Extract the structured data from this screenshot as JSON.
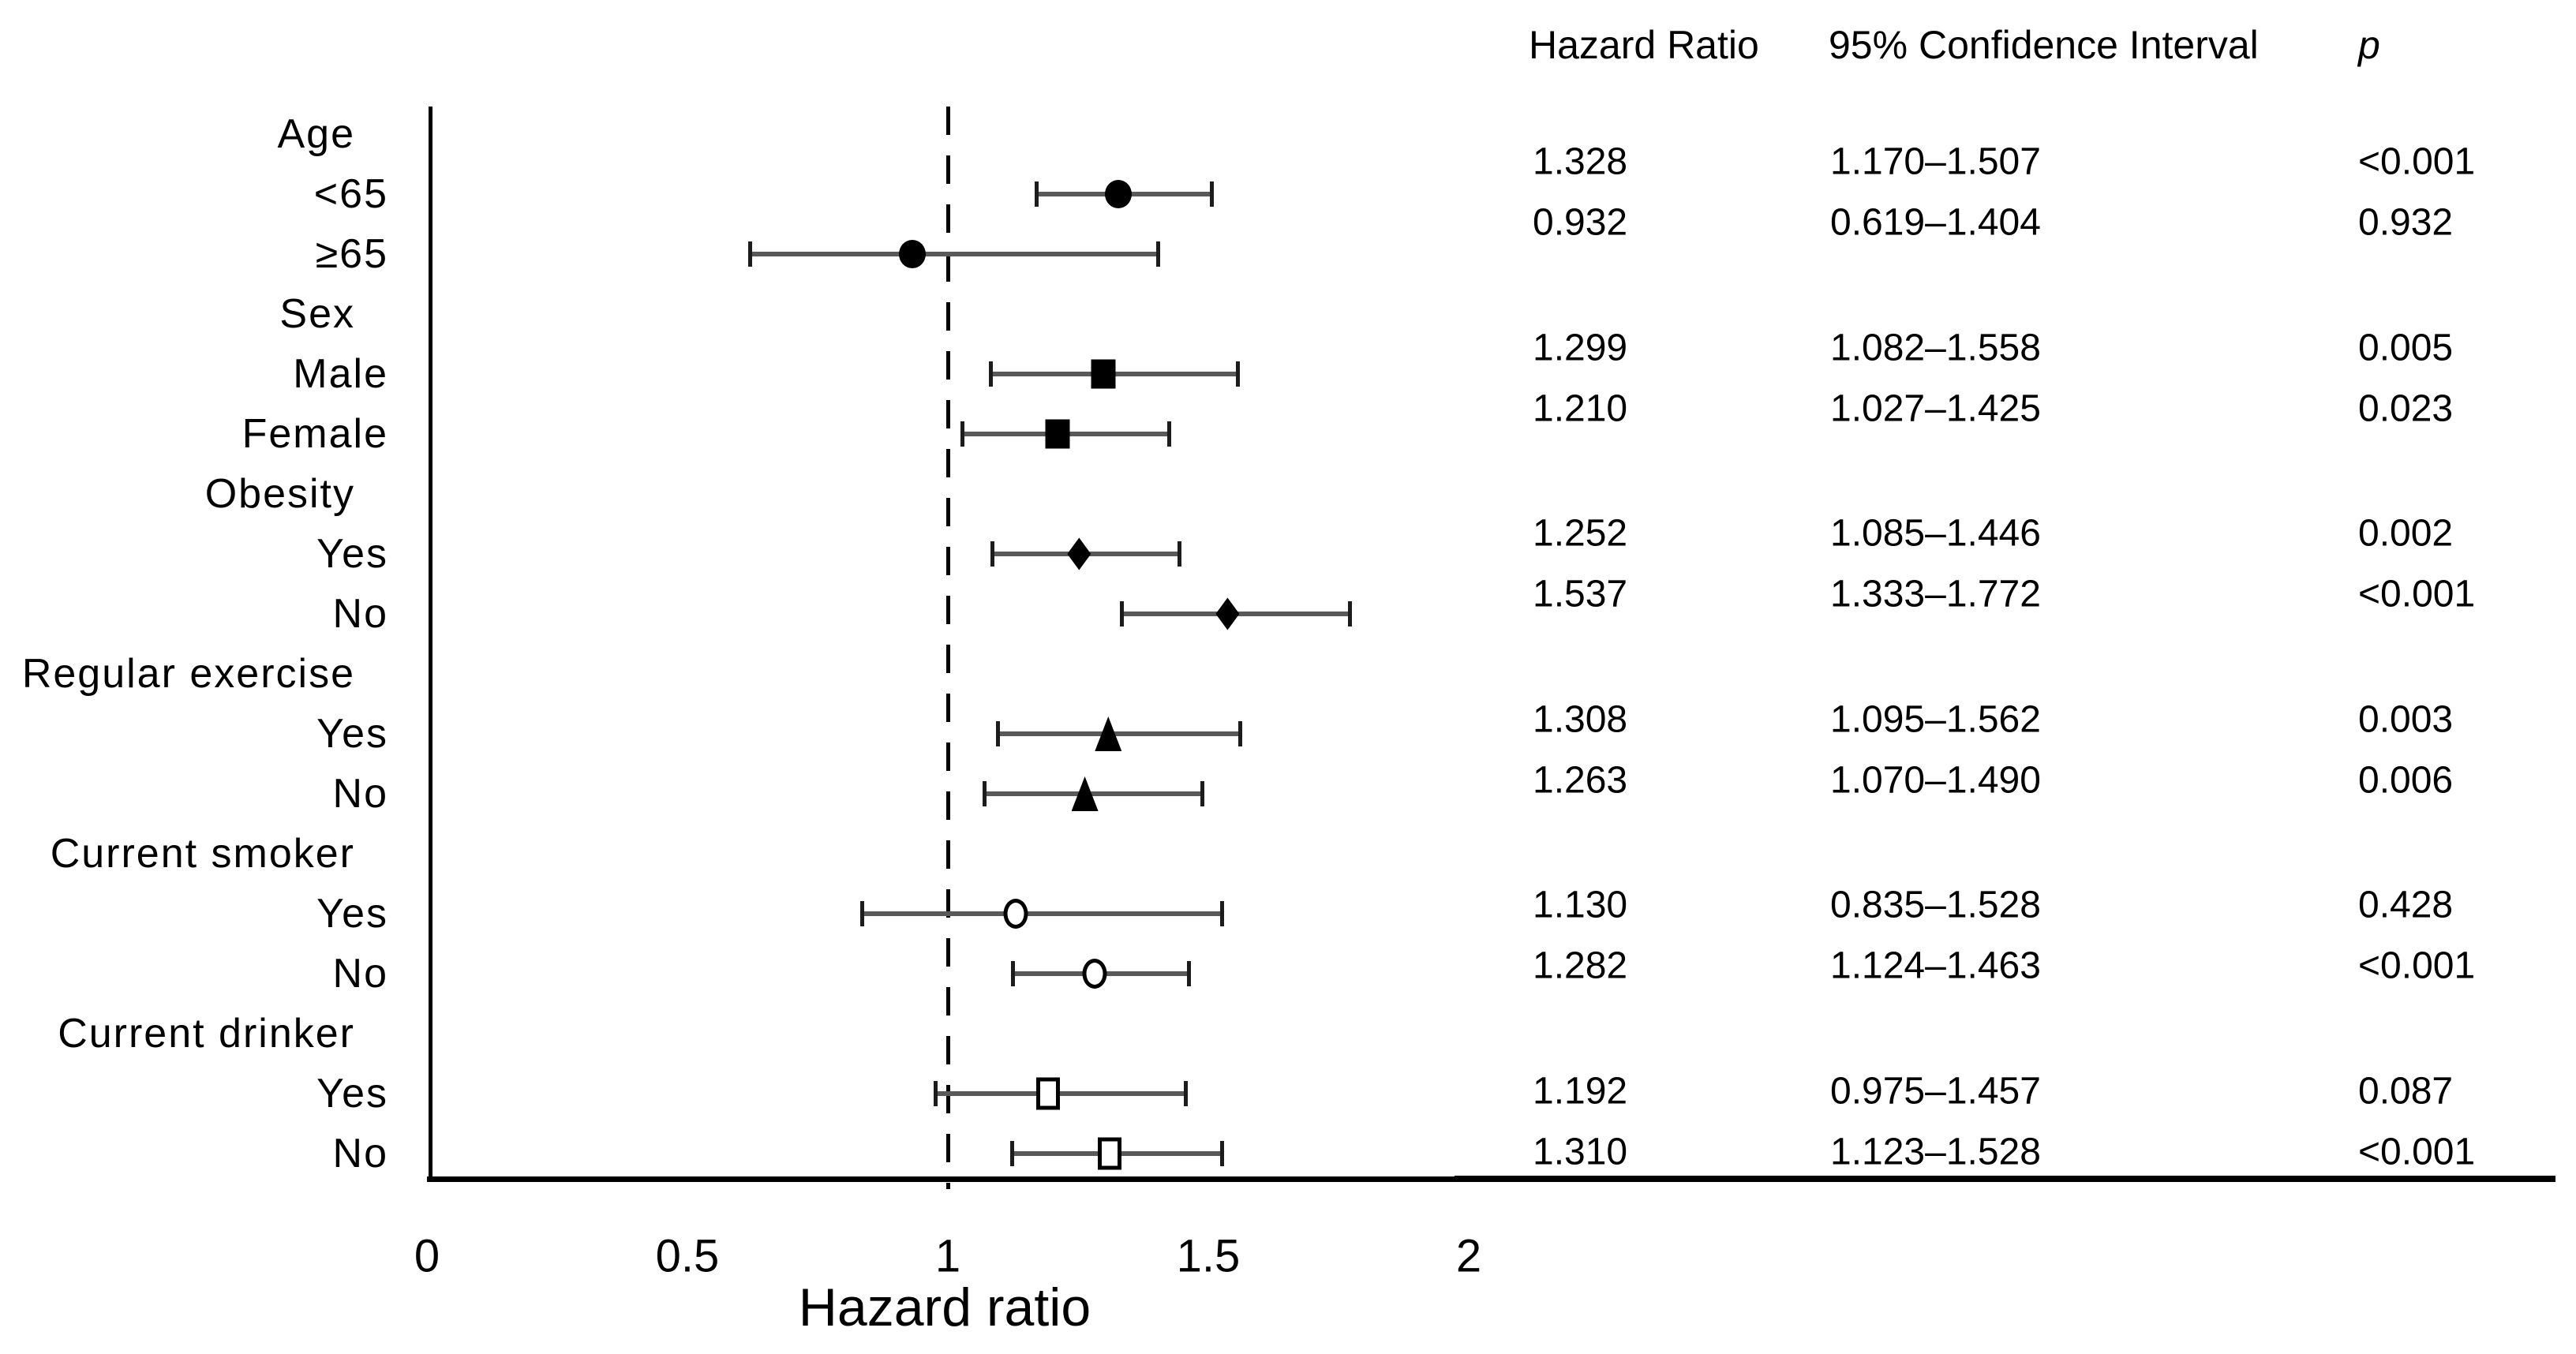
{
  "chart_data": {
    "type": "forest",
    "xlabel": "Hazard ratio",
    "x_ticks": [
      "0",
      "0.5",
      "1",
      "1.5",
      "2"
    ],
    "x_tick_values": [
      0,
      0.5,
      1,
      1.5,
      2
    ],
    "xlim": [
      0,
      2.07
    ],
    "reference_line": 1.0,
    "grid": "off",
    "columns": [
      "Hazard Ratio",
      "95% Confidence Interval",
      "p"
    ],
    "marker_color": "#000000",
    "ci_bar_color": "#595959",
    "groups": [
      {
        "label": "Age",
        "items": [
          {
            "label": "<65",
            "marker": "circle-filled",
            "hr": 1.328,
            "ci_low": 1.17,
            "ci_high": 1.507,
            "hr_text": "1.328",
            "ci_text": "1.170–1.507",
            "p_text": "<0.001"
          },
          {
            "label": "≥65",
            "marker": "circle-filled",
            "hr": 0.932,
            "ci_low": 0.619,
            "ci_high": 1.404,
            "hr_text": "0.932",
            "ci_text": "0.619–1.404",
            "p_text": "0.932"
          }
        ]
      },
      {
        "label": "Sex",
        "items": [
          {
            "label": "Male",
            "marker": "square-filled",
            "hr": 1.299,
            "ci_low": 1.082,
            "ci_high": 1.558,
            "hr_text": "1.299",
            "ci_text": "1.082–1.558",
            "p_text": "0.005"
          },
          {
            "label": "Female",
            "marker": "square-filled",
            "hr": 1.21,
            "ci_low": 1.027,
            "ci_high": 1.425,
            "hr_text": "1.210",
            "ci_text": "1.027–1.425",
            "p_text": "0.023"
          }
        ]
      },
      {
        "label": "Obesity",
        "items": [
          {
            "label": "Yes",
            "marker": "diamond-filled",
            "hr": 1.252,
            "ci_low": 1.085,
            "ci_high": 1.446,
            "hr_text": "1.252",
            "ci_text": "1.085–1.446",
            "p_text": "0.002"
          },
          {
            "label": "No",
            "marker": "diamond-filled",
            "hr": 1.537,
            "ci_low": 1.333,
            "ci_high": 1.772,
            "hr_text": "1.537",
            "ci_text": "1.333–1.772",
            "p_text": "<0.001"
          }
        ]
      },
      {
        "label": "Regular exercise",
        "items": [
          {
            "label": "Yes",
            "marker": "triangle-filled",
            "hr": 1.308,
            "ci_low": 1.095,
            "ci_high": 1.562,
            "hr_text": "1.308",
            "ci_text": "1.095–1.562",
            "p_text": "0.003"
          },
          {
            "label": "No",
            "marker": "triangle-filled",
            "hr": 1.263,
            "ci_low": 1.07,
            "ci_high": 1.49,
            "hr_text": "1.263",
            "ci_text": "1.070–1.490",
            "p_text": "0.006"
          }
        ]
      },
      {
        "label": "Current smoker",
        "items": [
          {
            "label": "Yes",
            "marker": "circle-open",
            "hr": 1.13,
            "ci_low": 0.835,
            "ci_high": 1.528,
            "hr_text": "1.130",
            "ci_text": "0.835–1.528",
            "p_text": "0.428"
          },
          {
            "label": "No",
            "marker": "circle-open",
            "hr": 1.282,
            "ci_low": 1.124,
            "ci_high": 1.463,
            "hr_text": "1.282",
            "ci_text": "1.124–1.463",
            "p_text": "<0.001"
          }
        ]
      },
      {
        "label": "Current drinker",
        "items": [
          {
            "label": "Yes",
            "marker": "square-open",
            "hr": 1.192,
            "ci_low": 0.975,
            "ci_high": 1.457,
            "hr_text": "1.192",
            "ci_text": "0.975–1.457",
            "p_text": "0.087"
          },
          {
            "label": "No",
            "marker": "square-open",
            "hr": 1.31,
            "ci_low": 1.123,
            "ci_high": 1.528,
            "hr_text": "1.310",
            "ci_text": "1.123–1.528",
            "p_text": "<0.001"
          }
        ]
      }
    ]
  }
}
